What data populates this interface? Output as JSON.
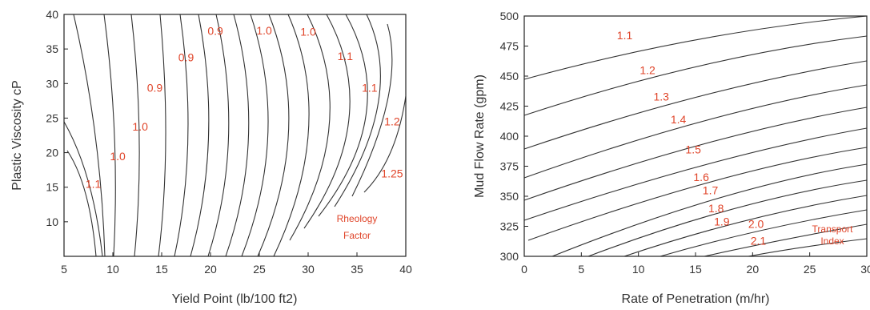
{
  "chart_data": [
    {
      "type": "contour",
      "xlabel": "Yield Point (lb/100 ft2)",
      "ylabel": "Plastic Viscosity cP",
      "xlim": [
        5,
        40
      ],
      "ylim": [
        5,
        40
      ],
      "xticks": [
        "5",
        "10",
        "15",
        "20",
        "25",
        "30",
        "35",
        "40"
      ],
      "yticks": [
        "10",
        "15",
        "20",
        "25",
        "30",
        "35",
        "40"
      ],
      "annotation": [
        "Rheology",
        "Factor"
      ],
      "contour_labels": [
        {
          "text": "1.1",
          "x": 8,
          "y": 15.5
        },
        {
          "text": "1.0",
          "x": 10.5,
          "y": 19.5
        },
        {
          "text": "1.0",
          "x": 12.8,
          "y": 23.8
        },
        {
          "text": "0.9",
          "x": 14.3,
          "y": 29.4
        },
        {
          "text": "0.9",
          "x": 17.5,
          "y": 33.8
        },
        {
          "text": "0.9",
          "x": 20.5,
          "y": 37.6
        },
        {
          "text": "1.0",
          "x": 25.5,
          "y": 37.7
        },
        {
          "text": "1.0",
          "x": 30,
          "y": 37.5
        },
        {
          "text": "1.1",
          "x": 33.8,
          "y": 34
        },
        {
          "text": "1.1",
          "x": 36.3,
          "y": 29.4
        },
        {
          "text": "1.2",
          "x": 38.6,
          "y": 24.5
        },
        {
          "text": "1.25",
          "x": 38.6,
          "y": 17
        }
      ]
    },
    {
      "type": "contour",
      "xlabel": "Rate of Penetration (m/hr)",
      "ylabel": "Mud Flow Rate (gpm)",
      "xlim": [
        0,
        30
      ],
      "ylim": [
        300,
        500
      ],
      "xticks": [
        "0",
        "5",
        "10",
        "15",
        "20",
        "25",
        "30"
      ],
      "yticks": [
        "300",
        "325",
        "350",
        "375",
        "400",
        "425",
        "450",
        "475",
        "500"
      ],
      "annotation": [
        "Transport",
        "Index"
      ],
      "contour_labels": [
        {
          "text": "1.1",
          "x": 8.8,
          "y": 484
        },
        {
          "text": "1.2",
          "x": 10.8,
          "y": 455
        },
        {
          "text": "1.3",
          "x": 12,
          "y": 433
        },
        {
          "text": "1.4",
          "x": 13.5,
          "y": 414
        },
        {
          "text": "1.5",
          "x": 14.8,
          "y": 389
        },
        {
          "text": "1.6",
          "x": 15.5,
          "y": 366
        },
        {
          "text": "1.7",
          "x": 16.3,
          "y": 355
        },
        {
          "text": "1.8",
          "x": 16.8,
          "y": 340
        },
        {
          "text": "1.9",
          "x": 17.3,
          "y": 329
        },
        {
          "text": "2.0",
          "x": 20.3,
          "y": 327
        },
        {
          "text": "2.1",
          "x": 20.5,
          "y": 313
        }
      ]
    }
  ]
}
